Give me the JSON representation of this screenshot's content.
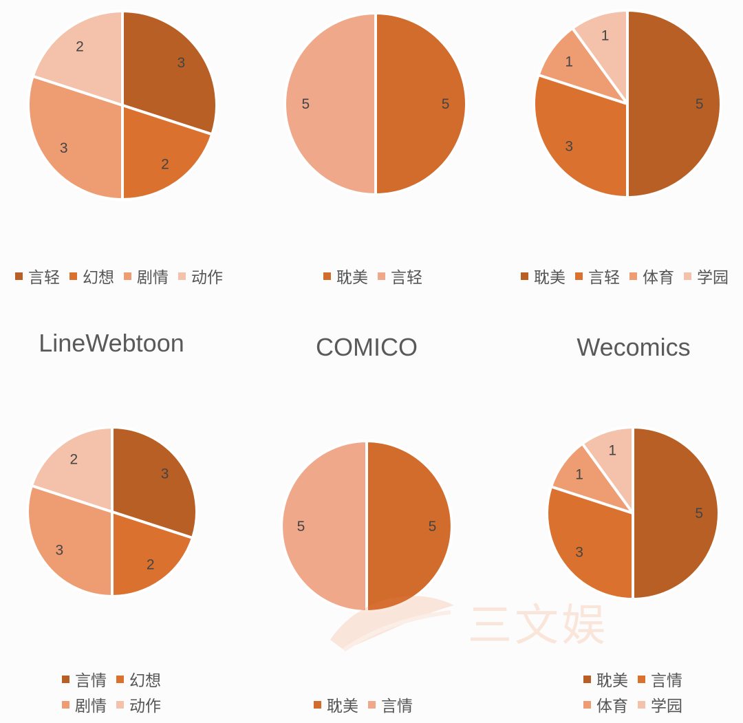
{
  "colors": {
    "dark": "#b85f25",
    "orange": "#da712f",
    "salmon": "#ee9c72",
    "light": "#f4c1aa",
    "pink": "#efa88a"
  },
  "platforms": [
    "LineWebtoon",
    "COMICO",
    "Wecomics"
  ],
  "watermark": "三文娱",
  "chart_data": [
    {
      "type": "pie",
      "title": "LineWebtoon",
      "categories": [
        "言轻",
        "幻想",
        "剧情",
        "动作"
      ],
      "values": [
        3,
        2,
        3,
        2
      ],
      "colors": [
        "#b85f25",
        "#da712f",
        "#ee9c72",
        "#f4c1aa"
      ]
    },
    {
      "type": "pie",
      "title": "COMICO",
      "categories": [
        "耽美",
        "言轻"
      ],
      "values": [
        5,
        5
      ],
      "colors": [
        "#d26c2d",
        "#efa88a"
      ]
    },
    {
      "type": "pie",
      "title": "Wecomics",
      "categories": [
        "耽美",
        "言轻",
        "体育",
        "学园"
      ],
      "values": [
        5,
        3,
        1,
        1
      ],
      "colors": [
        "#b85f25",
        "#da712f",
        "#ee9c72",
        "#f4c1aa"
      ]
    },
    {
      "type": "pie",
      "categories": [
        "言情",
        "幻想",
        "剧情",
        "动作"
      ],
      "values": [
        3,
        2,
        3,
        2
      ],
      "colors": [
        "#b85f25",
        "#da712f",
        "#ee9c72",
        "#f4c1aa"
      ]
    },
    {
      "type": "pie",
      "categories": [
        "耽美",
        "言情"
      ],
      "values": [
        5,
        5
      ],
      "colors": [
        "#d26c2d",
        "#efa88a"
      ]
    },
    {
      "type": "pie",
      "categories": [
        "耽美",
        "言情",
        "体育",
        "学园"
      ],
      "values": [
        5,
        3,
        1,
        1
      ],
      "colors": [
        "#b85f25",
        "#da712f",
        "#ee9c72",
        "#f4c1aa"
      ]
    }
  ]
}
